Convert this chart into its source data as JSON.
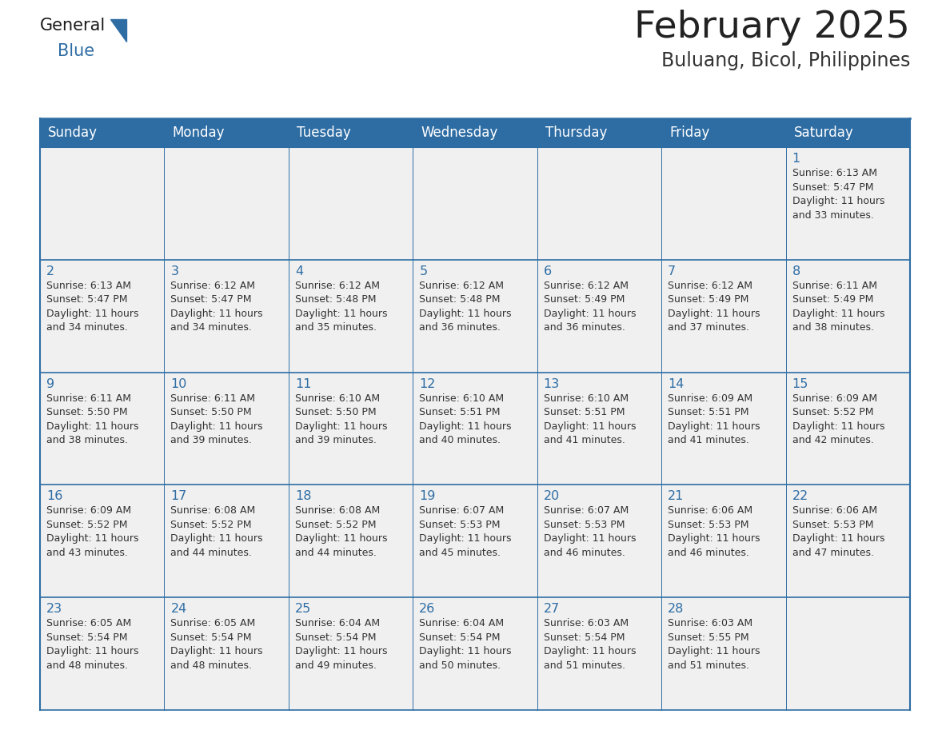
{
  "title": "February 2025",
  "subtitle": "Buluang, Bicol, Philippines",
  "days_of_week": [
    "Sunday",
    "Monday",
    "Tuesday",
    "Wednesday",
    "Thursday",
    "Friday",
    "Saturday"
  ],
  "header_bg_color": "#2E6DA4",
  "header_text_color": "#FFFFFF",
  "cell_bg_color": "#F0F0F0",
  "border_color": "#2E6DA4",
  "day_num_color": "#2E6DA4",
  "cell_text_color": "#333333",
  "title_color": "#222222",
  "subtitle_color": "#333333",
  "logo_general_color": "#1a1a1a",
  "logo_blue_color": "#2E6DA4",
  "weeks": [
    [
      {
        "day": null,
        "info": ""
      },
      {
        "day": null,
        "info": ""
      },
      {
        "day": null,
        "info": ""
      },
      {
        "day": null,
        "info": ""
      },
      {
        "day": null,
        "info": ""
      },
      {
        "day": null,
        "info": ""
      },
      {
        "day": 1,
        "info": "Sunrise: 6:13 AM\nSunset: 5:47 PM\nDaylight: 11 hours\nand 33 minutes."
      }
    ],
    [
      {
        "day": 2,
        "info": "Sunrise: 6:13 AM\nSunset: 5:47 PM\nDaylight: 11 hours\nand 34 minutes."
      },
      {
        "day": 3,
        "info": "Sunrise: 6:12 AM\nSunset: 5:47 PM\nDaylight: 11 hours\nand 34 minutes."
      },
      {
        "day": 4,
        "info": "Sunrise: 6:12 AM\nSunset: 5:48 PM\nDaylight: 11 hours\nand 35 minutes."
      },
      {
        "day": 5,
        "info": "Sunrise: 6:12 AM\nSunset: 5:48 PM\nDaylight: 11 hours\nand 36 minutes."
      },
      {
        "day": 6,
        "info": "Sunrise: 6:12 AM\nSunset: 5:49 PM\nDaylight: 11 hours\nand 36 minutes."
      },
      {
        "day": 7,
        "info": "Sunrise: 6:12 AM\nSunset: 5:49 PM\nDaylight: 11 hours\nand 37 minutes."
      },
      {
        "day": 8,
        "info": "Sunrise: 6:11 AM\nSunset: 5:49 PM\nDaylight: 11 hours\nand 38 minutes."
      }
    ],
    [
      {
        "day": 9,
        "info": "Sunrise: 6:11 AM\nSunset: 5:50 PM\nDaylight: 11 hours\nand 38 minutes."
      },
      {
        "day": 10,
        "info": "Sunrise: 6:11 AM\nSunset: 5:50 PM\nDaylight: 11 hours\nand 39 minutes."
      },
      {
        "day": 11,
        "info": "Sunrise: 6:10 AM\nSunset: 5:50 PM\nDaylight: 11 hours\nand 39 minutes."
      },
      {
        "day": 12,
        "info": "Sunrise: 6:10 AM\nSunset: 5:51 PM\nDaylight: 11 hours\nand 40 minutes."
      },
      {
        "day": 13,
        "info": "Sunrise: 6:10 AM\nSunset: 5:51 PM\nDaylight: 11 hours\nand 41 minutes."
      },
      {
        "day": 14,
        "info": "Sunrise: 6:09 AM\nSunset: 5:51 PM\nDaylight: 11 hours\nand 41 minutes."
      },
      {
        "day": 15,
        "info": "Sunrise: 6:09 AM\nSunset: 5:52 PM\nDaylight: 11 hours\nand 42 minutes."
      }
    ],
    [
      {
        "day": 16,
        "info": "Sunrise: 6:09 AM\nSunset: 5:52 PM\nDaylight: 11 hours\nand 43 minutes."
      },
      {
        "day": 17,
        "info": "Sunrise: 6:08 AM\nSunset: 5:52 PM\nDaylight: 11 hours\nand 44 minutes."
      },
      {
        "day": 18,
        "info": "Sunrise: 6:08 AM\nSunset: 5:52 PM\nDaylight: 11 hours\nand 44 minutes."
      },
      {
        "day": 19,
        "info": "Sunrise: 6:07 AM\nSunset: 5:53 PM\nDaylight: 11 hours\nand 45 minutes."
      },
      {
        "day": 20,
        "info": "Sunrise: 6:07 AM\nSunset: 5:53 PM\nDaylight: 11 hours\nand 46 minutes."
      },
      {
        "day": 21,
        "info": "Sunrise: 6:06 AM\nSunset: 5:53 PM\nDaylight: 11 hours\nand 46 minutes."
      },
      {
        "day": 22,
        "info": "Sunrise: 6:06 AM\nSunset: 5:53 PM\nDaylight: 11 hours\nand 47 minutes."
      }
    ],
    [
      {
        "day": 23,
        "info": "Sunrise: 6:05 AM\nSunset: 5:54 PM\nDaylight: 11 hours\nand 48 minutes."
      },
      {
        "day": 24,
        "info": "Sunrise: 6:05 AM\nSunset: 5:54 PM\nDaylight: 11 hours\nand 48 minutes."
      },
      {
        "day": 25,
        "info": "Sunrise: 6:04 AM\nSunset: 5:54 PM\nDaylight: 11 hours\nand 49 minutes."
      },
      {
        "day": 26,
        "info": "Sunrise: 6:04 AM\nSunset: 5:54 PM\nDaylight: 11 hours\nand 50 minutes."
      },
      {
        "day": 27,
        "info": "Sunrise: 6:03 AM\nSunset: 5:54 PM\nDaylight: 11 hours\nand 51 minutes."
      },
      {
        "day": 28,
        "info": "Sunrise: 6:03 AM\nSunset: 5:55 PM\nDaylight: 11 hours\nand 51 minutes."
      },
      {
        "day": null,
        "info": ""
      }
    ]
  ]
}
